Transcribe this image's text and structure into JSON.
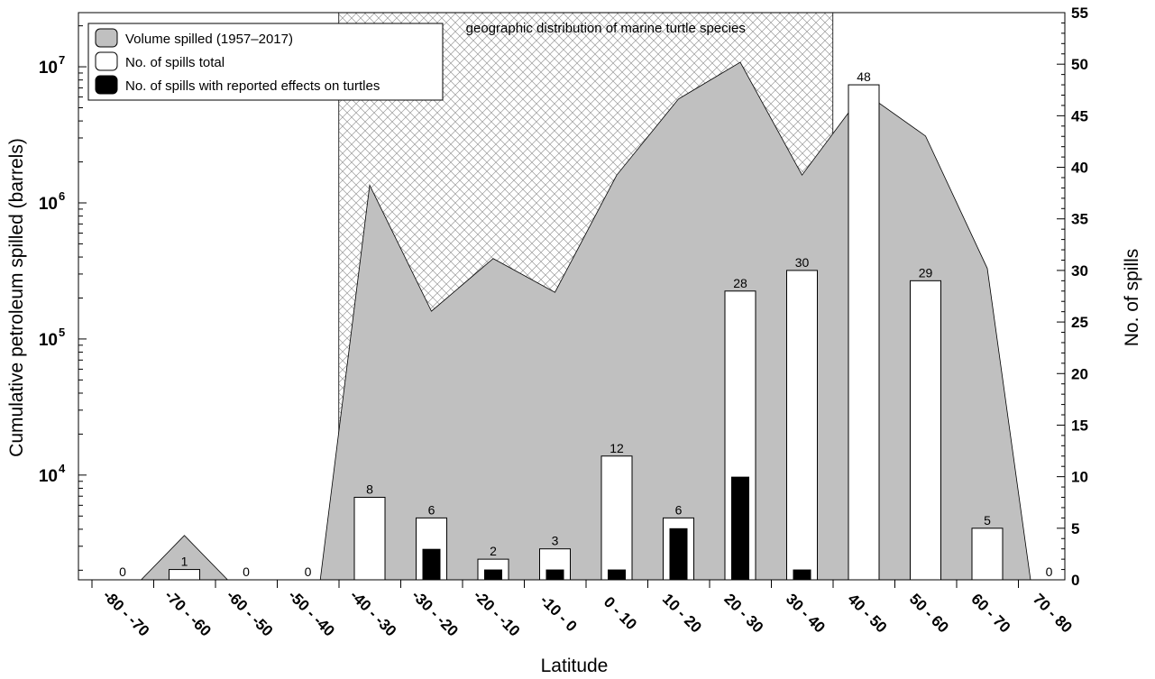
{
  "chart_data": {
    "type": "bar",
    "categories": [
      "-80 - -70",
      "-70 - -60",
      "-60 - -50",
      "-50 - -40",
      "-40 - -30",
      "-30 - -20",
      "-20 - -10",
      "-10 - 0",
      "0 - 10",
      "10 - 20",
      "20 - 30",
      "30 - 40",
      "40 - 50",
      "50 - 60",
      "60 - 70",
      "70 - 80"
    ],
    "xlabel": "Latitude",
    "ylabel_left": "Cumulative petroleum spilled (barrels)",
    "ylabel_right": "No. of spills",
    "left_axis_scale": "log",
    "left_ylim": [
      1700,
      25000000
    ],
    "left_ticks": [
      {
        "base": "10",
        "exp": "4"
      },
      {
        "base": "10",
        "exp": "5"
      },
      {
        "base": "10",
        "exp": "6"
      },
      {
        "base": "10",
        "exp": "7"
      }
    ],
    "right_ylim": [
      0,
      55
    ],
    "right_ticks": [
      "0",
      "5",
      "10",
      "15",
      "20",
      "25",
      "30",
      "35",
      "40",
      "45",
      "50",
      "55"
    ],
    "series": [
      {
        "name": "Volume spilled (1957–2017)",
        "type": "area",
        "axis": "left",
        "color": "#c0c0c0",
        "points": [
          {
            "lat": -72,
            "value": 1700
          },
          {
            "lat": -65,
            "value": 3600
          },
          {
            "lat": -58,
            "value": 1700
          },
          {
            "lat": -43,
            "value": 1700
          },
          {
            "lat": -35,
            "value": 1350000
          },
          {
            "lat": -25,
            "value": 160000
          },
          {
            "lat": -15,
            "value": 390000
          },
          {
            "lat": -5,
            "value": 220000
          },
          {
            "lat": 5,
            "value": 1600000
          },
          {
            "lat": 15,
            "value": 5800000
          },
          {
            "lat": 25,
            "value": 10800000
          },
          {
            "lat": 35,
            "value": 1600000
          },
          {
            "lat": 45,
            "value": 6500000
          },
          {
            "lat": 55,
            "value": 3100000
          },
          {
            "lat": 65,
            "value": 330000
          },
          {
            "lat": 72,
            "value": 1700
          }
        ]
      },
      {
        "name": "No. of spills total",
        "type": "bar",
        "axis": "right",
        "color": "#ffffff",
        "values": [
          0,
          1,
          0,
          0,
          8,
          6,
          2,
          3,
          12,
          6,
          28,
          30,
          48,
          29,
          5,
          0
        ],
        "labels": [
          "0",
          "1",
          "0",
          "0",
          "8",
          "6",
          "2",
          "3",
          "12",
          "6",
          "28",
          "30",
          "48",
          "29",
          "5",
          "0"
        ]
      },
      {
        "name": "No. of spills with reported effects on turtles",
        "type": "bar",
        "axis": "right",
        "color": "#000000",
        "values": [
          0,
          0,
          0,
          0,
          0,
          3,
          1,
          1,
          1,
          5,
          10,
          1,
          0,
          0,
          0,
          0
        ]
      }
    ],
    "annotation": {
      "text": "geographic distribution of marine turtle species",
      "lat_range": [
        -40,
        40
      ],
      "pattern": "crosshatch"
    },
    "legend_position": "top-left"
  }
}
